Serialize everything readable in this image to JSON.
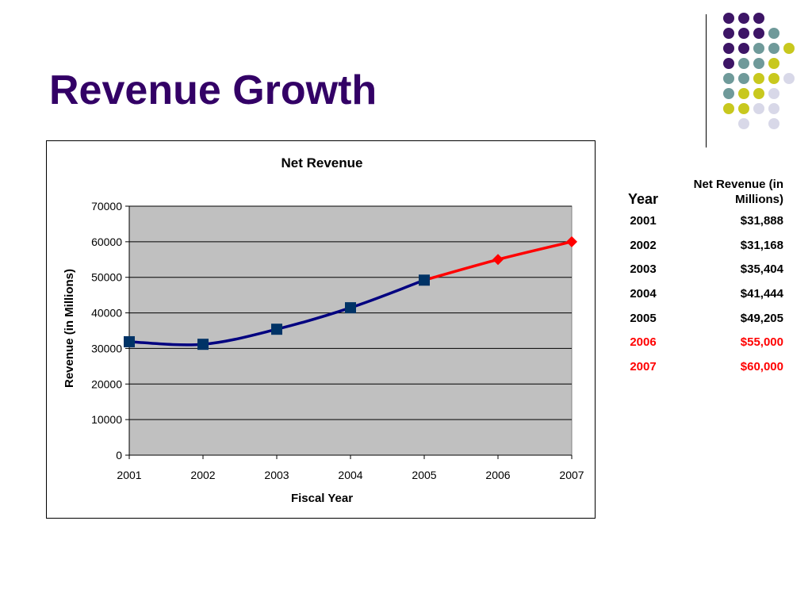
{
  "slide": {
    "title": "Revenue Growth"
  },
  "colors": {
    "title": "#330066",
    "actual_series": "#000080",
    "actual_marker": "#003366",
    "projected_series": "#FF0000",
    "plot_background": "#C0C0C0",
    "deco_purple": "#3d1566",
    "deco_teal": "#6f9a9a",
    "deco_yellow": "#c8c81e",
    "deco_lavender": "#d8d8e8"
  },
  "chart_data": {
    "type": "line",
    "title": "Net Revenue",
    "xlabel": "Fiscal Year",
    "ylabel": "Revenue (in Millions)",
    "x": [
      "2001",
      "2002",
      "2003",
      "2004",
      "2005",
      "2006",
      "2007"
    ],
    "ylim": [
      0,
      70000
    ],
    "yticks": [
      "0",
      "10000",
      "20000",
      "30000",
      "40000",
      "50000",
      "60000",
      "70000"
    ],
    "grid": true,
    "legend": "none",
    "series": [
      {
        "values": [
          31888,
          31168,
          35404,
          41444,
          49205,
          null,
          null
        ],
        "marker": "square",
        "color": "#000080"
      },
      {
        "values": [
          null,
          null,
          null,
          null,
          49205,
          55000,
          60000
        ],
        "marker": "diamond",
        "color": "#FF0000"
      }
    ]
  },
  "table": {
    "headers": {
      "year": "Year",
      "revenue": "Net Revenue (in Millions)"
    },
    "rows": [
      {
        "year": "2001",
        "revenue": "$31,888",
        "projected": false
      },
      {
        "year": "2002",
        "revenue": "$31,168",
        "projected": false
      },
      {
        "year": "2003",
        "revenue": "$35,404",
        "projected": false
      },
      {
        "year": "2004",
        "revenue": "$41,444",
        "projected": false
      },
      {
        "year": "2005",
        "revenue": "$49,205",
        "projected": false
      },
      {
        "year": "2006",
        "revenue": "$55,000",
        "projected": true
      },
      {
        "year": "2007",
        "revenue": "$60,000",
        "projected": true
      }
    ]
  }
}
